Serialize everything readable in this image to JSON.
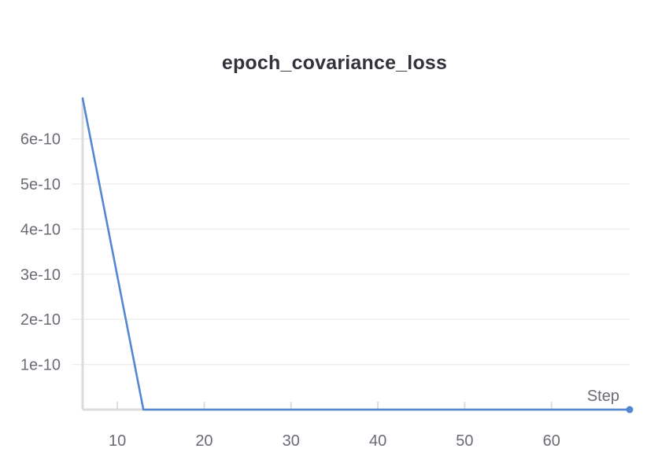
{
  "chart_data": {
    "type": "line",
    "title": "epoch_covariance_loss",
    "xlabel": "Step",
    "ylabel": "",
    "xlim": [
      6,
      69
    ],
    "ylim": [
      0,
      6.9e-10
    ],
    "x_ticks": [
      10,
      20,
      30,
      40,
      50,
      60
    ],
    "x_tick_labels": [
      "10",
      "20",
      "30",
      "40",
      "50",
      "60"
    ],
    "y_ticks": [
      1e-10,
      2e-10,
      3e-10,
      4e-10,
      5e-10,
      6e-10
    ],
    "y_tick_labels": [
      "1e-10",
      "2e-10",
      "3e-10",
      "4e-10",
      "5e-10",
      "6e-10"
    ],
    "grid": true,
    "series": [
      {
        "color": "#5387d1",
        "x": [
          6,
          13,
          69
        ],
        "y": [
          6.9e-10,
          0,
          0
        ]
      }
    ]
  },
  "colors": {
    "line": "#5387d1",
    "grid": "#ebebeb",
    "axis": "#dcdcdc",
    "tick_text": "#6b6b76",
    "title": "#33333b"
  }
}
